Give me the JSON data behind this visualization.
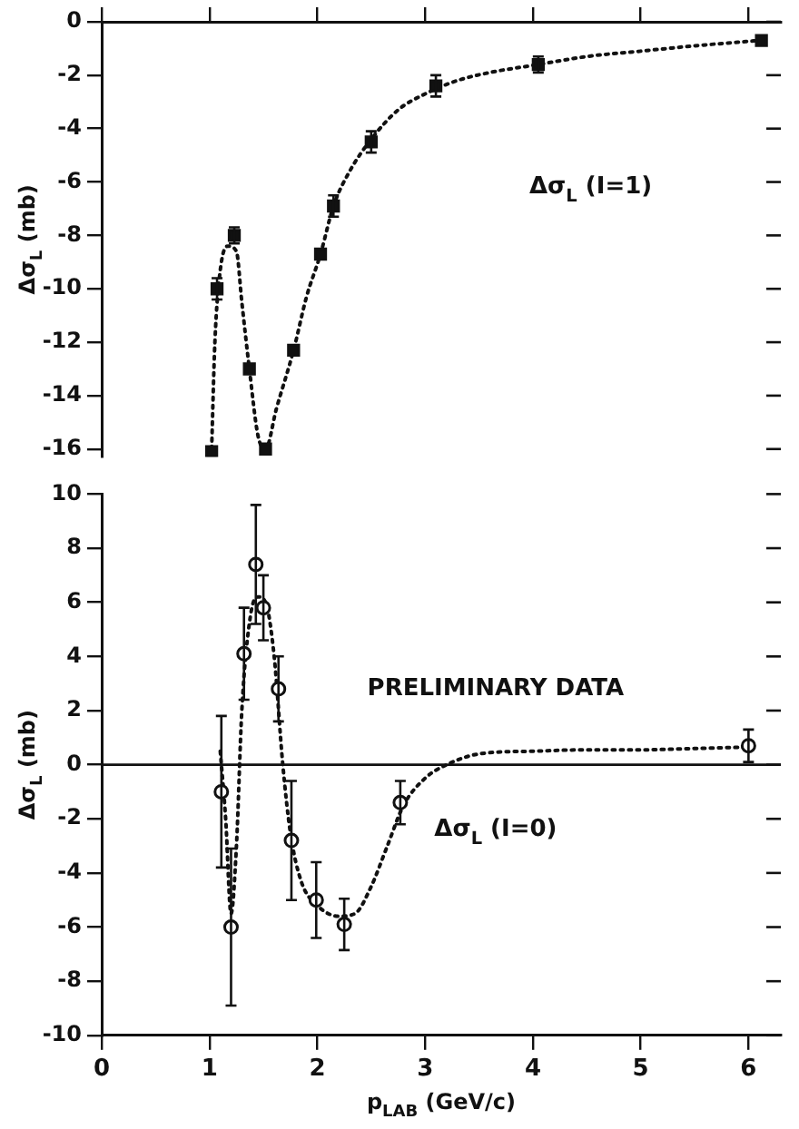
{
  "chart_data": [
    {
      "type": "scatter",
      "ylabel": "Δσ$_{L}$ (mb)",
      "xlim": [
        0,
        6.3
      ],
      "xticks": [
        0,
        1,
        2,
        3,
        4,
        5,
        6
      ],
      "ylim": [
        -16.3,
        0
      ],
      "yticks": [
        -16,
        -14,
        -12,
        -10,
        -8,
        -6,
        -4,
        -2,
        0
      ],
      "tick_labels": "y",
      "grid": false,
      "legend": false,
      "marker": "square",
      "line_style": "dotted",
      "annotations": [
        "Δσ$_{L}$ (I=1)"
      ],
      "series": [
        {
          "color": "#111111",
          "x": [
            1.02,
            1.07,
            1.23,
            1.37,
            1.52,
            1.78,
            2.03,
            2.15,
            2.5,
            3.1,
            4.05,
            6.12
          ],
          "values": [
            -16.1,
            -10.0,
            -8.0,
            -13.0,
            -16.0,
            -12.3,
            -8.7,
            -6.9,
            -4.5,
            -2.4,
            -1.6,
            -0.7
          ],
          "errors": [
            null,
            0.4,
            0.3,
            null,
            null,
            null,
            null,
            0.4,
            0.4,
            0.4,
            0.3,
            null
          ]
        },
        {
          "type": "line",
          "marker": "none",
          "color": "#111111",
          "x": [
            1.02,
            1.05,
            1.1,
            1.17,
            1.25,
            1.3,
            1.37,
            1.45,
            1.52,
            1.62,
            1.78,
            1.9,
            2.03,
            2.15,
            2.3,
            2.5,
            2.75,
            3.0,
            3.3,
            3.6,
            4.05,
            4.5,
            5.0,
            5.5,
            6.1
          ],
          "values": [
            -16,
            -12,
            -9.3,
            -8.4,
            -8.6,
            -10.5,
            -13,
            -15.5,
            -16,
            -14.5,
            -12.3,
            -10.3,
            -8.7,
            -6.9,
            -5.6,
            -4.4,
            -3.3,
            -2.7,
            -2.2,
            -1.9,
            -1.6,
            -1.3,
            -1.1,
            -0.9,
            -0.7
          ]
        }
      ]
    },
    {
      "type": "scatter",
      "ylabel": "Δσ$_{L}$ (mb)",
      "xlabel": "p$_{LAB}$ (GeV/c)",
      "xlim": [
        0,
        6.3
      ],
      "xticks": [
        0,
        1,
        2,
        3,
        4,
        5,
        6
      ],
      "ylim": [
        -10,
        10
      ],
      "yticks": [
        -10,
        -8,
        -6,
        -4,
        -2,
        0,
        2,
        4,
        6,
        8,
        10
      ],
      "grid": false,
      "legend": false,
      "marker": "circle",
      "line_style": "dotted",
      "annotations": [
        "PRELIMINARY DATA",
        "Δσ$_{L}$ (I=0)"
      ],
      "ref_lines": [
        {
          "axis": "y",
          "value": 0,
          "color": "#111111"
        }
      ],
      "series": [
        {
          "color": "#111111",
          "x": [
            1.11,
            1.2,
            1.32,
            1.43,
            1.5,
            1.64,
            1.76,
            1.99,
            2.25,
            2.77,
            6.0
          ],
          "values": [
            -1.0,
            -6.0,
            4.1,
            7.4,
            5.8,
            2.8,
            -2.8,
            -5.0,
            -5.9,
            -1.4,
            0.7
          ],
          "errors": [
            2.8,
            2.9,
            1.7,
            2.2,
            1.2,
            1.2,
            2.2,
            1.4,
            0.95,
            0.8,
            0.6
          ]
        },
        {
          "type": "line",
          "marker": "none",
          "color": "#111111",
          "x": [
            1.1,
            1.15,
            1.2,
            1.25,
            1.3,
            1.38,
            1.45,
            1.52,
            1.6,
            1.68,
            1.75,
            1.85,
            2.0,
            2.2,
            2.35,
            2.5,
            2.65,
            2.8,
            3.0,
            3.2,
            3.5,
            4.0,
            4.5,
            5.0,
            5.5,
            6.0
          ],
          "values": [
            0.5,
            -2,
            -5.5,
            -3,
            2,
            5.5,
            6.2,
            6,
            4,
            0,
            -2.5,
            -4.3,
            -5.2,
            -5.6,
            -5.5,
            -4.5,
            -3,
            -1.5,
            -0.5,
            0,
            0.4,
            0.5,
            0.55,
            0.55,
            0.6,
            0.65
          ]
        }
      ]
    }
  ]
}
